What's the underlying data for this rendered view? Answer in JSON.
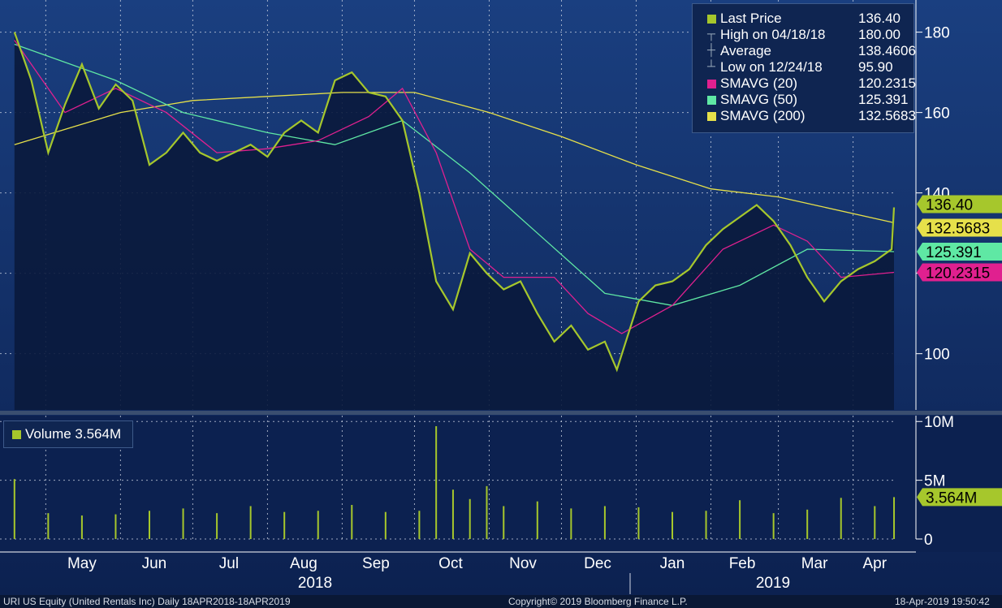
{
  "chart_data": [
    {
      "type": "line",
      "title": "",
      "xlabel": "",
      "ylabel": "",
      "ylim": [
        86,
        188
      ],
      "y_ticks": [
        100,
        120,
        140,
        160,
        180
      ],
      "y_tick_labels": [
        "100",
        "",
        "140",
        "160",
        "180"
      ],
      "grid": true,
      "legend_position": "top-right",
      "x_month_labels": [
        "May",
        "Jun",
        "Jul",
        "Aug",
        "Sep",
        "Oct",
        "Nov",
        "Dec",
        "Jan",
        "Feb",
        "Mar",
        "Apr"
      ],
      "x_year_labels": [
        "2018",
        "2019"
      ],
      "series": [
        {
          "name": "Last Price",
          "color": "#a6c72c",
          "x": [
            "2018-04-18",
            "2018-04-25",
            "2018-05-02",
            "2018-05-09",
            "2018-05-16",
            "2018-05-23",
            "2018-05-30",
            "2018-06-06",
            "2018-06-13",
            "2018-06-20",
            "2018-06-27",
            "2018-07-04",
            "2018-07-11",
            "2018-07-18",
            "2018-07-25",
            "2018-08-01",
            "2018-08-08",
            "2018-08-15",
            "2018-08-22",
            "2018-08-29",
            "2018-09-05",
            "2018-09-12",
            "2018-09-19",
            "2018-09-26",
            "2018-10-03",
            "2018-10-10",
            "2018-10-17",
            "2018-10-24",
            "2018-10-31",
            "2018-11-07",
            "2018-11-14",
            "2018-11-21",
            "2018-11-28",
            "2018-12-05",
            "2018-12-12",
            "2018-12-19",
            "2018-12-24",
            "2019-01-02",
            "2019-01-09",
            "2019-01-16",
            "2019-01-23",
            "2019-01-30",
            "2019-02-06",
            "2019-02-13",
            "2019-02-20",
            "2019-02-27",
            "2019-03-06",
            "2019-03-13",
            "2019-03-20",
            "2019-03-27",
            "2019-04-03",
            "2019-04-10",
            "2019-04-17",
            "2019-04-18"
          ],
          "values": [
            180,
            168,
            150,
            162,
            172,
            161,
            167,
            163,
            147,
            150,
            155,
            150,
            148,
            150,
            152,
            149,
            155,
            158,
            155,
            168,
            170,
            165,
            164,
            158,
            140,
            118,
            111,
            125,
            120,
            116,
            118,
            110,
            103,
            107,
            101,
            103,
            96,
            113,
            117,
            118,
            121,
            127,
            131,
            134,
            137,
            133,
            127,
            119,
            113,
            118,
            121,
            123,
            126,
            136.4
          ]
        },
        {
          "name": "SMAVG (20)",
          "color": "#e0208f",
          "x": [
            "2018-04-18",
            "2018-05-09",
            "2018-05-30",
            "2018-06-20",
            "2018-07-11",
            "2018-08-01",
            "2018-08-22",
            "2018-09-12",
            "2018-09-26",
            "2018-10-10",
            "2018-10-24",
            "2018-11-07",
            "2018-11-28",
            "2018-12-12",
            "2018-12-26",
            "2019-01-16",
            "2019-02-06",
            "2019-02-27",
            "2019-03-13",
            "2019-03-27",
            "2019-04-18"
          ],
          "values": [
            178,
            160,
            166,
            160,
            150,
            151,
            153,
            159,
            166,
            150,
            126,
            119,
            119,
            110,
            105,
            112,
            126,
            132,
            128,
            119,
            120.2315
          ]
        },
        {
          "name": "SMAVG (50)",
          "color": "#5fe8a4",
          "x": [
            "2018-04-18",
            "2018-05-30",
            "2018-06-27",
            "2018-08-01",
            "2018-08-29",
            "2018-09-26",
            "2018-10-24",
            "2018-11-21",
            "2018-12-19",
            "2019-01-16",
            "2019-02-13",
            "2019-03-13",
            "2019-04-18"
          ],
          "values": [
            177,
            168,
            160,
            155,
            152,
            158,
            145,
            130,
            115,
            112,
            117,
            126,
            125.391
          ]
        },
        {
          "name": "SMAVG (200)",
          "color": "#e6e04a",
          "x": [
            "2018-04-18",
            "2018-06-01",
            "2018-07-01",
            "2018-08-01",
            "2018-09-01",
            "2018-10-01",
            "2018-11-01",
            "2018-12-01",
            "2019-01-01",
            "2019-02-01",
            "2019-03-01",
            "2019-04-18"
          ],
          "values": [
            152,
            160,
            163,
            164,
            165,
            165,
            160,
            154,
            147,
            141,
            139,
            132.5683
          ]
        }
      ],
      "legend": [
        {
          "label": "Last Price",
          "value": "136.40",
          "color": "#a6c72c",
          "icon": "square-swatch"
        },
        {
          "label": "High on 04/18/18",
          "value": "180.00",
          "color": "#9ab0c8",
          "icon": "high-marker-icon"
        },
        {
          "label": "Average",
          "value": "138.4606",
          "color": "#9ab0c8",
          "icon": "average-marker-icon"
        },
        {
          "label": "Low on 12/24/18",
          "value": "95.90",
          "color": "#9ab0c8",
          "icon": "low-marker-icon"
        },
        {
          "label": "SMAVG (20)",
          "value": "120.2315",
          "color": "#e0208f",
          "icon": "square-swatch"
        },
        {
          "label": "SMAVG (50)",
          "value": "125.391",
          "color": "#5fe8a4",
          "icon": "square-swatch"
        },
        {
          "label": "SMAVG (200)",
          "value": "132.5683",
          "color": "#e6e04a",
          "icon": "square-swatch"
        }
      ],
      "value_tags": [
        {
          "text": "136.40",
          "value": 136.4,
          "color": "#a6c72c"
        },
        {
          "text": "132.5683",
          "value": 132.5683,
          "color": "#e6e04a"
        },
        {
          "text": "125.391",
          "value": 125.391,
          "color": "#5fe8a4"
        },
        {
          "text": "120.2315",
          "value": 120.2315,
          "color": "#e0208f"
        }
      ]
    },
    {
      "type": "bar",
      "title": "",
      "ylim": [
        0,
        10.5
      ],
      "y_ticks": [
        0,
        5,
        10
      ],
      "y_tick_labels": [
        "0",
        "5M",
        "10M"
      ],
      "legend": [
        {
          "label": "Volume 3.564M",
          "color": "#a6c72c"
        }
      ],
      "value_tag": {
        "text": "3.564M",
        "value": 3.564
      },
      "series": [
        {
          "name": "Volume",
          "units": "M",
          "color": "#a6c72c",
          "x": [
            "2018-04-18",
            "2018-05-02",
            "2018-05-16",
            "2018-05-30",
            "2018-06-13",
            "2018-06-27",
            "2018-07-11",
            "2018-07-25",
            "2018-08-08",
            "2018-08-22",
            "2018-09-05",
            "2018-09-19",
            "2018-10-03",
            "2018-10-10",
            "2018-10-17",
            "2018-10-24",
            "2018-10-31",
            "2018-11-07",
            "2018-11-21",
            "2018-12-05",
            "2018-12-19",
            "2019-01-02",
            "2019-01-16",
            "2019-01-30",
            "2019-02-13",
            "2019-02-27",
            "2019-03-13",
            "2019-03-27",
            "2019-04-10",
            "2019-04-18"
          ],
          "values": [
            5.1,
            2.2,
            2.0,
            2.1,
            2.4,
            2.6,
            2.2,
            2.8,
            2.3,
            2.4,
            2.9,
            2.3,
            2.4,
            9.6,
            4.2,
            3.4,
            4.5,
            2.8,
            3.2,
            2.6,
            2.8,
            2.7,
            2.3,
            2.4,
            3.3,
            2.2,
            2.5,
            3.5,
            2.8,
            3.564
          ]
        }
      ]
    }
  ],
  "footer": {
    "left": "URI US Equity (United Rentals Inc)  Daily 18APR2018-18APR2019",
    "center": "Copyright© 2019 Bloomberg Finance L.P.",
    "right": "18-Apr-2019 19:50:42"
  }
}
